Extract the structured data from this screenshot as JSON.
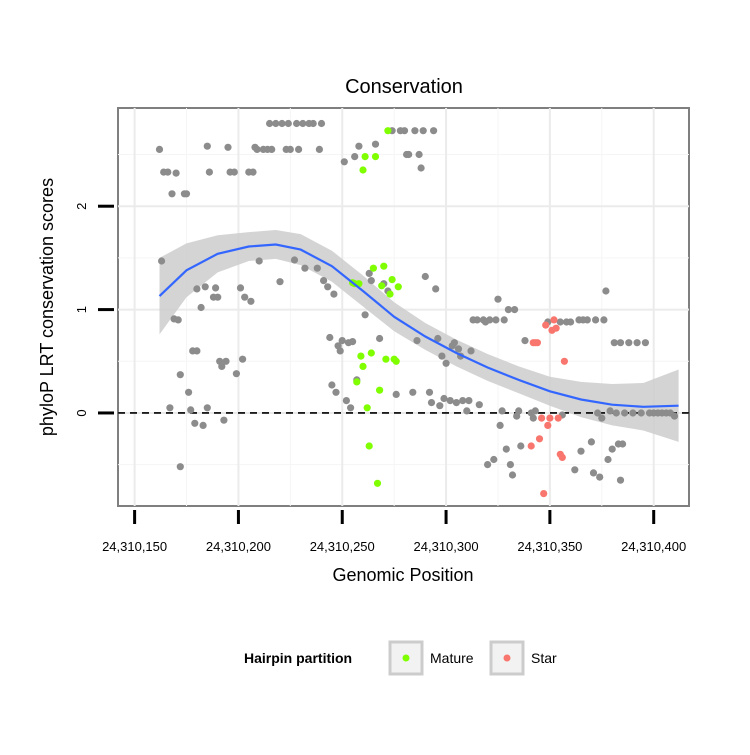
{
  "chart_data": {
    "type": "scatter",
    "title": "Conservation",
    "xlabel": "Genomic Position",
    "ylabel": "phyloP LRT conservation scores",
    "xlim": [
      24310142,
      24310417
    ],
    "ylim": [
      -0.9,
      2.95
    ],
    "x_ticks": [
      24310150,
      24310200,
      24310250,
      24310300,
      24310350,
      24310400
    ],
    "x_tick_labels": [
      "24,310,150",
      "24,310,200",
      "24,310,250",
      "24,310,300",
      "24,310,350",
      "24,310,400"
    ],
    "y_ticks": [
      0,
      1,
      2
    ],
    "y_tick_labels": [
      "0",
      "1",
      "2"
    ],
    "reference_line_y": 0,
    "legend": {
      "title": "Hairpin partition",
      "position": "bottom",
      "entries": [
        {
          "label": "Mature",
          "color": "#7fff00"
        },
        {
          "label": "Star",
          "color": "#f8766d"
        }
      ]
    },
    "colors": {
      "other": "#8c8c8c",
      "mature": "#7fff00",
      "star": "#f8766d",
      "smooth": "#3366ff",
      "band": "#cccccc"
    },
    "smooth": {
      "method": "loess",
      "x": [
        24310162,
        24310175,
        24310190,
        24310205,
        24310218,
        24310230,
        24310245,
        24310260,
        24310275,
        24310290,
        24310305,
        24310320,
        24310335,
        24310350,
        24310365,
        24310380,
        24310395,
        24310412
      ],
      "y": [
        1.13,
        1.38,
        1.54,
        1.61,
        1.63,
        1.58,
        1.42,
        1.18,
        0.93,
        0.74,
        0.58,
        0.44,
        0.32,
        0.21,
        0.13,
        0.08,
        0.06,
        0.07
      ],
      "lower": [
        0.76,
        1.12,
        1.36,
        1.47,
        1.49,
        1.43,
        1.27,
        1.03,
        0.79,
        0.61,
        0.45,
        0.31,
        0.19,
        0.07,
        -0.04,
        -0.12,
        -0.17,
        -0.28
      ],
      "upper": [
        1.5,
        1.64,
        1.72,
        1.75,
        1.77,
        1.73,
        1.57,
        1.33,
        1.07,
        0.87,
        0.71,
        0.57,
        0.45,
        0.35,
        0.3,
        0.28,
        0.29,
        0.42
      ]
    },
    "series": [
      {
        "name": "Other",
        "points": [
          [
            24310162,
            2.55
          ],
          [
            24310163,
            1.47
          ],
          [
            24310164,
            2.33
          ],
          [
            24310166,
            2.33
          ],
          [
            24310167,
            0.05
          ],
          [
            24310168,
            2.12
          ],
          [
            24310169,
            0.91
          ],
          [
            24310170,
            2.32
          ],
          [
            24310171,
            0.9
          ],
          [
            24310172,
            -0.52
          ],
          [
            24310172,
            0.37
          ],
          [
            24310174,
            2.12
          ],
          [
            24310175,
            2.12
          ],
          [
            24310176,
            0.2
          ],
          [
            24310177,
            0.03
          ],
          [
            24310178,
            0.6
          ],
          [
            24310179,
            -0.1
          ],
          [
            24310180,
            0.6
          ],
          [
            24310180,
            1.2
          ],
          [
            24310182,
            1.02
          ],
          [
            24310183,
            -0.12
          ],
          [
            24310184,
            1.22
          ],
          [
            24310185,
            2.58
          ],
          [
            24310185,
            0.05
          ],
          [
            24310186,
            2.33
          ],
          [
            24310188,
            1.12
          ],
          [
            24310189,
            1.21
          ],
          [
            24310190,
            1.12
          ],
          [
            24310191,
            0.5
          ],
          [
            24310192,
            0.45
          ],
          [
            24310193,
            -0.07
          ],
          [
            24310194,
            0.5
          ],
          [
            24310195,
            2.57
          ],
          [
            24310196,
            2.33
          ],
          [
            24310198,
            2.33
          ],
          [
            24310199,
            0.38
          ],
          [
            24310201,
            1.21
          ],
          [
            24310202,
            0.52
          ],
          [
            24310203,
            1.12
          ],
          [
            24310205,
            2.33
          ],
          [
            24310206,
            1.08
          ],
          [
            24310207,
            2.33
          ],
          [
            24310208,
            2.57
          ],
          [
            24310209,
            2.55
          ],
          [
            24310210,
            1.47
          ],
          [
            24310212,
            2.55
          ],
          [
            24310214,
            2.55
          ],
          [
            24310215,
            2.8
          ],
          [
            24310216,
            2.55
          ],
          [
            24310218,
            2.8
          ],
          [
            24310220,
            1.27
          ],
          [
            24310221,
            2.8
          ],
          [
            24310223,
            2.55
          ],
          [
            24310224,
            2.8
          ],
          [
            24310225,
            2.55
          ],
          [
            24310227,
            1.48
          ],
          [
            24310228,
            2.8
          ],
          [
            24310229,
            2.55
          ],
          [
            24310231,
            2.8
          ],
          [
            24310232,
            1.4
          ],
          [
            24310234,
            2.8
          ],
          [
            24310236,
            2.8
          ],
          [
            24310238,
            1.4
          ],
          [
            24310239,
            2.55
          ],
          [
            24310240,
            2.8
          ],
          [
            24310241,
            1.28
          ],
          [
            24310243,
            1.22
          ],
          [
            24310244,
            0.73
          ],
          [
            24310245,
            0.27
          ],
          [
            24310246,
            1.15
          ],
          [
            24310247,
            0.2
          ],
          [
            24310248,
            0.65
          ],
          [
            24310249,
            0.6
          ],
          [
            24310250,
            0.7
          ],
          [
            24310251,
            2.43
          ],
          [
            24310252,
            0.12
          ],
          [
            24310253,
            0.68
          ],
          [
            24310254,
            0.05
          ],
          [
            24310255,
            0.69
          ],
          [
            24310256,
            2.48
          ],
          [
            24310257,
            0.32
          ],
          [
            24310258,
            2.58
          ],
          [
            24310261,
            0.95
          ],
          [
            24310263,
            1.35
          ],
          [
            24310264,
            1.28
          ],
          [
            24310266,
            2.6
          ],
          [
            24310268,
            0.72
          ],
          [
            24310270,
            1.25
          ],
          [
            24310272,
            1.18
          ],
          [
            24310274,
            2.73
          ],
          [
            24310276,
            0.18
          ],
          [
            24310278,
            2.73
          ],
          [
            24310280,
            2.73
          ],
          [
            24310281,
            2.5
          ],
          [
            24310282,
            2.5
          ],
          [
            24310284,
            0.2
          ],
          [
            24310285,
            2.73
          ],
          [
            24310286,
            0.7
          ],
          [
            24310287,
            2.5
          ],
          [
            24310288,
            2.37
          ],
          [
            24310289,
            2.73
          ],
          [
            24310290,
            1.32
          ],
          [
            24310292,
            0.2
          ],
          [
            24310293,
            0.1
          ],
          [
            24310294,
            2.73
          ],
          [
            24310295,
            1.2
          ],
          [
            24310296,
            0.72
          ],
          [
            24310297,
            0.07
          ],
          [
            24310298,
            0.55
          ],
          [
            24310299,
            0.14
          ],
          [
            24310300,
            0.48
          ],
          [
            24310302,
            0.12
          ],
          [
            24310303,
            0.65
          ],
          [
            24310304,
            0.68
          ],
          [
            24310305,
            0.1
          ],
          [
            24310306,
            0.62
          ],
          [
            24310307,
            0.55
          ],
          [
            24310308,
            0.12
          ],
          [
            24310310,
            0.02
          ],
          [
            24310311,
            0.12
          ],
          [
            24310312,
            0.6
          ],
          [
            24310313,
            0.9
          ],
          [
            24310315,
            0.9
          ],
          [
            24310316,
            0.08
          ],
          [
            24310318,
            0.9
          ],
          [
            24310319,
            0.88
          ],
          [
            24310320,
            -0.5
          ],
          [
            24310321,
            0.9
          ],
          [
            24310323,
            -0.45
          ],
          [
            24310324,
            0.9
          ],
          [
            24310325,
            1.1
          ],
          [
            24310326,
            -0.12
          ],
          [
            24310327,
            0.02
          ],
          [
            24310328,
            0.9
          ],
          [
            24310329,
            -0.35
          ],
          [
            24310330,
            1.0
          ],
          [
            24310331,
            -0.5
          ],
          [
            24310332,
            -0.6
          ],
          [
            24310333,
            1.0
          ],
          [
            24310334,
            -0.03
          ],
          [
            24310335,
            0.02
          ],
          [
            24310336,
            -0.32
          ],
          [
            24310338,
            0.7
          ],
          [
            24310341,
            0.0
          ],
          [
            24310342,
            -0.05
          ],
          [
            24310343,
            0.02
          ],
          [
            24310349,
            0.88
          ],
          [
            24310355,
            0.88
          ],
          [
            24310356,
            -0.02
          ],
          [
            24310358,
            0.88
          ],
          [
            24310360,
            0.88
          ],
          [
            24310362,
            -0.55
          ],
          [
            24310364,
            0.9
          ],
          [
            24310365,
            -0.37
          ],
          [
            24310366,
            0.9
          ],
          [
            24310368,
            0.9
          ],
          [
            24310370,
            -0.28
          ],
          [
            24310371,
            -0.58
          ],
          [
            24310372,
            0.9
          ],
          [
            24310373,
            0.0
          ],
          [
            24310374,
            -0.62
          ],
          [
            24310375,
            -0.05
          ],
          [
            24310376,
            0.9
          ],
          [
            24310377,
            1.18
          ],
          [
            24310378,
            -0.45
          ],
          [
            24310379,
            0.02
          ],
          [
            24310380,
            -0.35
          ],
          [
            24310381,
            0.68
          ],
          [
            24310382,
            0.0
          ],
          [
            24310383,
            -0.3
          ],
          [
            24310384,
            0.68
          ],
          [
            24310384,
            -0.65
          ],
          [
            24310385,
            -0.3
          ],
          [
            24310386,
            0.0
          ],
          [
            24310388,
            0.68
          ],
          [
            24310390,
            0.0
          ],
          [
            24310392,
            0.68
          ],
          [
            24310394,
            0.0
          ],
          [
            24310396,
            0.68
          ],
          [
            24310398,
            0.0
          ],
          [
            24310400,
            0.0
          ],
          [
            24310402,
            0.0
          ],
          [
            24310404,
            0.0
          ],
          [
            24310406,
            0.0
          ],
          [
            24310408,
            0.0
          ],
          [
            24310410,
            -0.03
          ]
        ]
      },
      {
        "name": "Mature",
        "points": [
          [
            24310255,
            1.26
          ],
          [
            24310256,
            1.25
          ],
          [
            24310257,
            0.3
          ],
          [
            24310258,
            1.25
          ],
          [
            24310259,
            0.55
          ],
          [
            24310260,
            2.35
          ],
          [
            24310260,
            0.45
          ],
          [
            24310261,
            2.48
          ],
          [
            24310262,
            0.05
          ],
          [
            24310263,
            -0.32
          ],
          [
            24310264,
            0.58
          ],
          [
            24310265,
            1.4
          ],
          [
            24310266,
            2.48
          ],
          [
            24310267,
            -0.68
          ],
          [
            24310268,
            0.22
          ],
          [
            24310269,
            1.23
          ],
          [
            24310270,
            1.42
          ],
          [
            24310271,
            0.52
          ],
          [
            24310272,
            2.73
          ],
          [
            24310273,
            1.15
          ],
          [
            24310274,
            1.29
          ],
          [
            24310275,
            0.52
          ],
          [
            24310276,
            0.5
          ],
          [
            24310277,
            1.22
          ]
        ]
      },
      {
        "name": "Star",
        "points": [
          [
            24310341,
            -0.32
          ],
          [
            24310342,
            0.68
          ],
          [
            24310343,
            0.68
          ],
          [
            24310344,
            0.68
          ],
          [
            24310345,
            -0.25
          ],
          [
            24310346,
            -0.05
          ],
          [
            24310347,
            -0.78
          ],
          [
            24310348,
            0.85
          ],
          [
            24310349,
            -0.12
          ],
          [
            24310350,
            -0.05
          ],
          [
            24310351,
            0.8
          ],
          [
            24310352,
            0.9
          ],
          [
            24310353,
            0.82
          ],
          [
            24310354,
            -0.05
          ],
          [
            24310355,
            -0.4
          ],
          [
            24310356,
            -0.43
          ],
          [
            24310357,
            0.5
          ]
        ]
      }
    ]
  }
}
